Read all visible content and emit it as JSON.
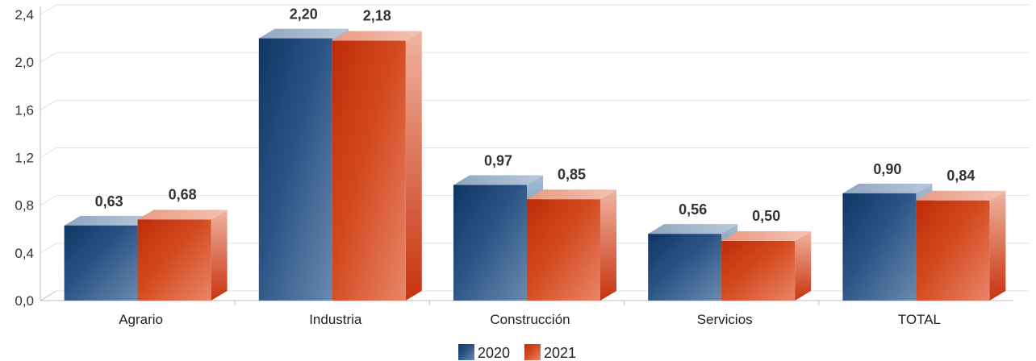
{
  "chart_data": {
    "type": "bar",
    "title": "",
    "xlabel": "",
    "ylabel": "",
    "categories": [
      "Agrario",
      "Industria",
      "Construcción",
      "Servicios",
      "TOTAL"
    ],
    "series": [
      {
        "name": "2020",
        "values": [
          0.63,
          2.2,
          0.97,
          0.56,
          0.9
        ],
        "labels": [
          "0,63",
          "2,20",
          "0,97",
          "0,56",
          "0,90"
        ],
        "color": "#143d6b"
      },
      {
        "name": "2021",
        "values": [
          0.68,
          2.18,
          0.85,
          0.5,
          0.84
        ],
        "labels": [
          "0,68",
          "2,18",
          "0,85",
          "0,50",
          "0,84"
        ],
        "color": "#c8330e"
      }
    ],
    "ylim": [
      0,
      2.4
    ],
    "yticks": [
      0,
      0.4,
      0.8,
      1.2,
      1.6,
      2.0,
      2.4
    ],
    "ytick_labels": [
      "0,0",
      "0,4",
      "0,8",
      "1,2",
      "1,6",
      "2,0",
      "2,4"
    ],
    "grid": true,
    "legend_position": "bottom-center",
    "style": "3d"
  }
}
